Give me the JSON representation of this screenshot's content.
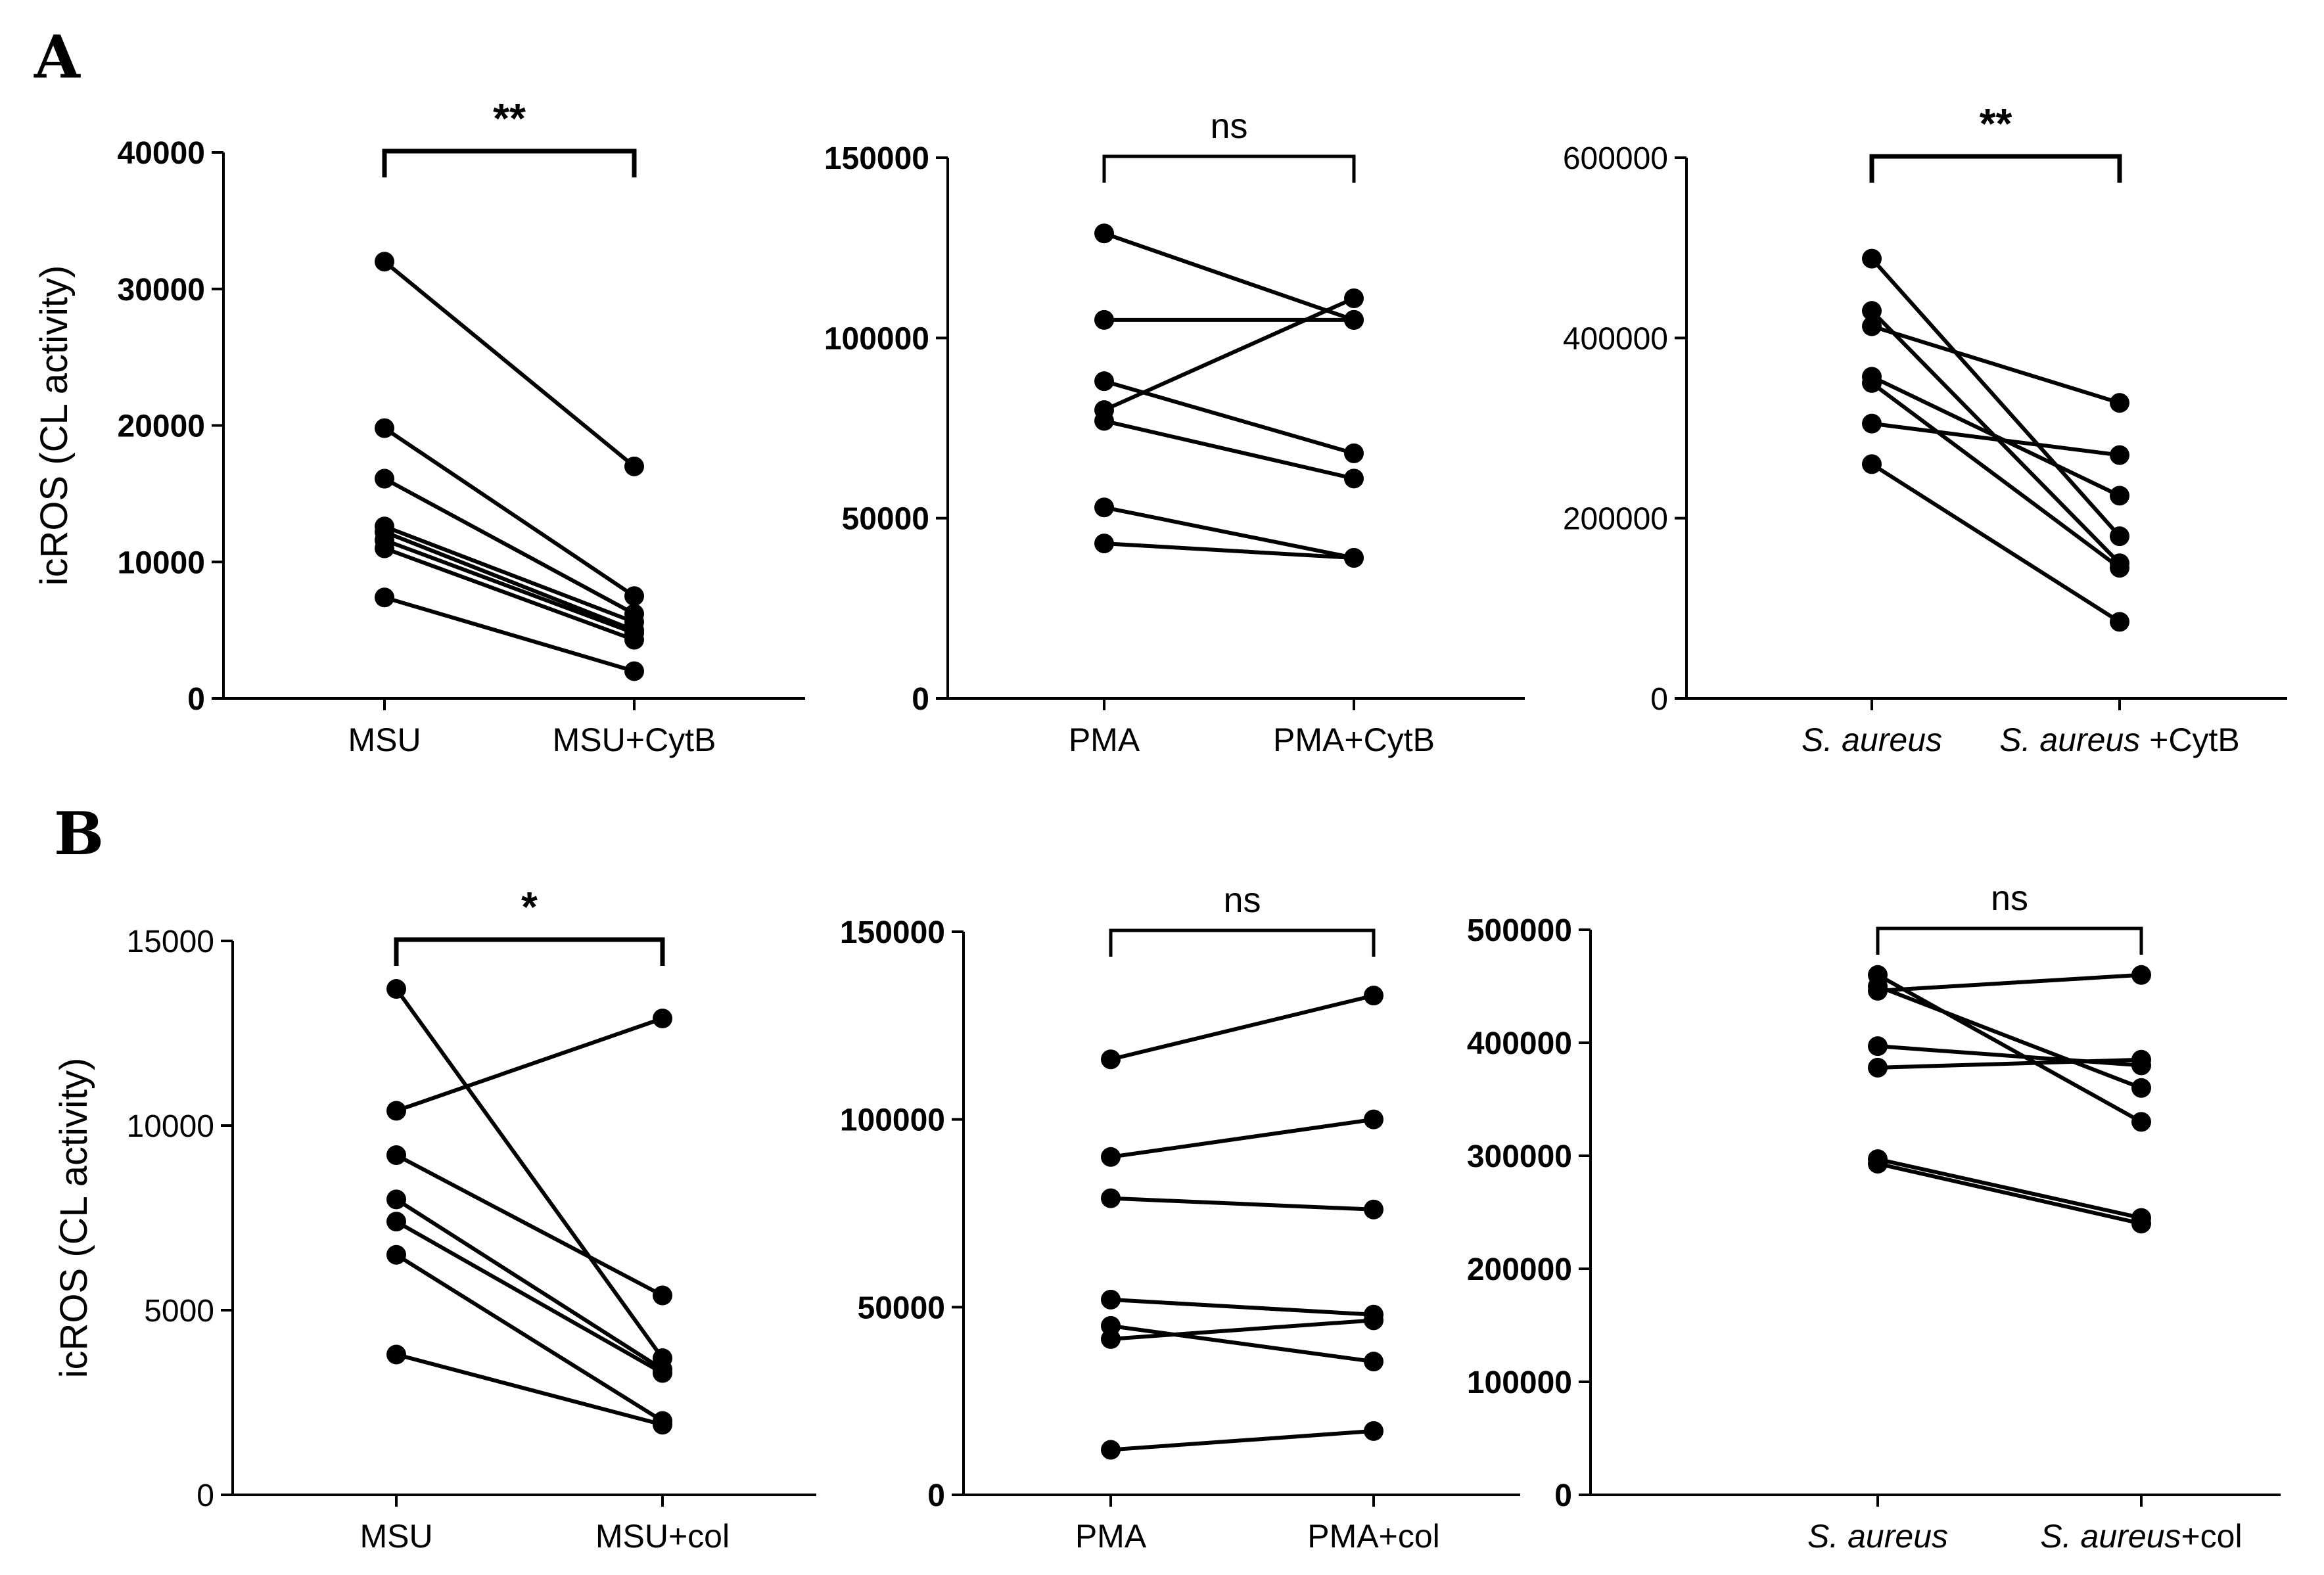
{
  "figure": {
    "panel_labels": [
      "A",
      "B"
    ]
  },
  "chart_data": [
    {
      "type": "line",
      "panel": "A",
      "ylabel": "icROS (CL activity)",
      "ylim": [
        0,
        40000
      ],
      "yticks": [
        "0",
        "10000",
        "20000",
        "30000",
        "40000"
      ],
      "yticks_bold": true,
      "categories": [
        "MSU",
        "MSU+CytB"
      ],
      "significance": "**",
      "pairs": [
        [
          32000,
          17000
        ],
        [
          19800,
          7500
        ],
        [
          16100,
          6200
        ],
        [
          12600,
          5600
        ],
        [
          12200,
          5000
        ],
        [
          11600,
          4800
        ],
        [
          11000,
          4300
        ],
        [
          7400,
          2000
        ]
      ]
    },
    {
      "type": "line",
      "panel": "A",
      "ylabel": "",
      "ylim": [
        0,
        150000
      ],
      "yticks": [
        "0",
        "50000",
        "100000",
        "150000"
      ],
      "yticks_bold": true,
      "categories": [
        "PMA",
        "PMA+CytB"
      ],
      "significance": "ns",
      "pairs": [
        [
          129000,
          105000
        ],
        [
          105000,
          105000
        ],
        [
          88000,
          68000
        ],
        [
          80000,
          111000
        ],
        [
          77000,
          61000
        ],
        [
          53000,
          39000
        ],
        [
          43000,
          39000
        ]
      ]
    },
    {
      "type": "line",
      "panel": "A",
      "ylabel": "",
      "ylim": [
        0,
        600000
      ],
      "yticks": [
        "0",
        "200000",
        "400000",
        "600000"
      ],
      "yticks_bold": false,
      "categories": [
        "S. aureus",
        "S. aureus +CytB"
      ],
      "categories_italic_part": [
        "S. aureus",
        "S. aureus"
      ],
      "categories_plain_part": [
        "",
        " +CytB"
      ],
      "significance": "**",
      "pairs": [
        [
          488000,
          180000
        ],
        [
          430000,
          150000
        ],
        [
          413000,
          328000
        ],
        [
          357000,
          225000
        ],
        [
          350000,
          145000
        ],
        [
          305000,
          270000
        ],
        [
          260000,
          85000
        ]
      ]
    },
    {
      "type": "line",
      "panel": "B",
      "ylabel": "icROS (CL activity)",
      "ylim": [
        0,
        15000
      ],
      "yticks": [
        "0",
        "5000",
        "10000",
        "15000"
      ],
      "yticks_bold": false,
      "categories": [
        "MSU",
        "MSU+col"
      ],
      "significance": "*",
      "pairs": [
        [
          13700,
          3700
        ],
        [
          10400,
          12900
        ],
        [
          9200,
          5400
        ],
        [
          8000,
          3400
        ],
        [
          7400,
          3300
        ],
        [
          6500,
          2000
        ],
        [
          3800,
          1900
        ]
      ]
    },
    {
      "type": "line",
      "panel": "B",
      "ylabel": "",
      "ylim": [
        0,
        150000
      ],
      "yticks": [
        "0",
        "50000",
        "100000",
        "150000"
      ],
      "yticks_bold": true,
      "categories": [
        "PMA",
        "PMA+col"
      ],
      "significance": "ns",
      "pairs": [
        [
          116000,
          133000
        ],
        [
          90000,
          100000
        ],
        [
          79000,
          76000
        ],
        [
          52000,
          48000
        ],
        [
          45000,
          35500
        ],
        [
          41500,
          46500
        ],
        [
          12000,
          17000
        ]
      ]
    },
    {
      "type": "line",
      "panel": "B",
      "ylabel": "",
      "ylim": [
        0,
        500000
      ],
      "yticks": [
        "0",
        "100000",
        "200000",
        "300000",
        "400000",
        "500000"
      ],
      "yticks_bold": true,
      "categories": [
        "S. aureus",
        "S. aureus+col"
      ],
      "categories_italic_part": [
        "S. aureus",
        "S. aureus"
      ],
      "categories_plain_part": [
        "",
        "+col"
      ],
      "significance": "ns",
      "pairs": [
        [
          460000,
          330000
        ],
        [
          450000,
          360000
        ],
        [
          446000,
          460000
        ],
        [
          397000,
          380000
        ],
        [
          378000,
          385000
        ],
        [
          297000,
          245000
        ],
        [
          293000,
          240000
        ]
      ]
    }
  ]
}
